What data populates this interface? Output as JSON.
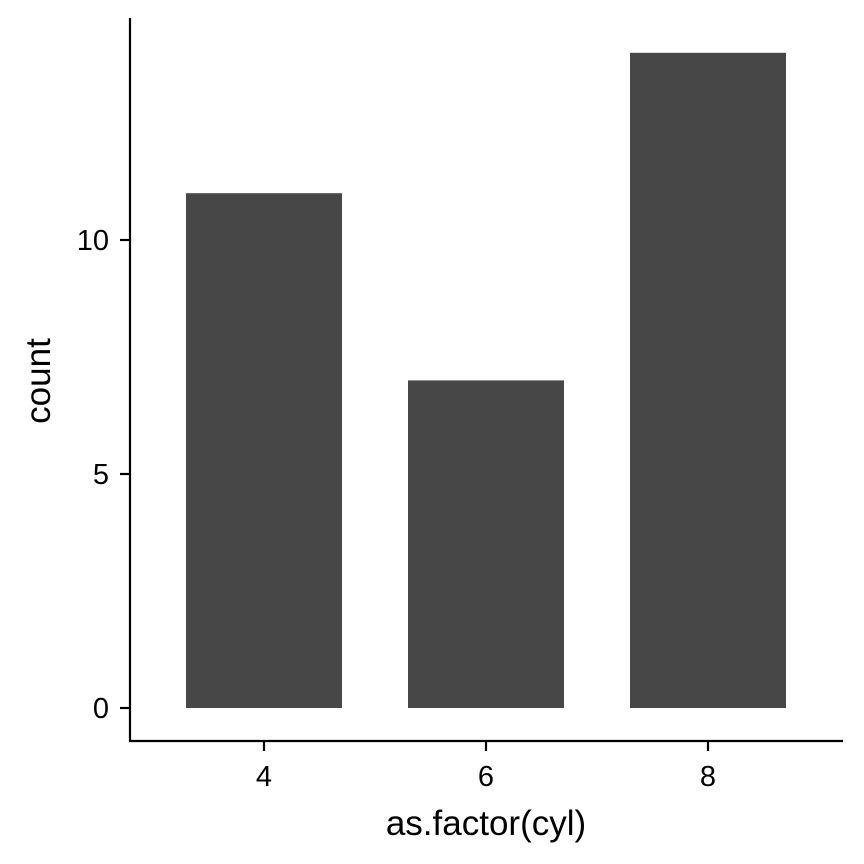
{
  "chart_data": {
    "type": "bar",
    "categories": [
      "4",
      "6",
      "8"
    ],
    "values": [
      11,
      7,
      14
    ],
    "xlabel": "as.factor(cyl)",
    "ylabel": "count",
    "ylim": [
      0,
      14
    ],
    "yticks": [
      0,
      5,
      10
    ],
    "grid": false,
    "legend": "none",
    "bar_color": "#474747",
    "axis_color": "#000000"
  }
}
